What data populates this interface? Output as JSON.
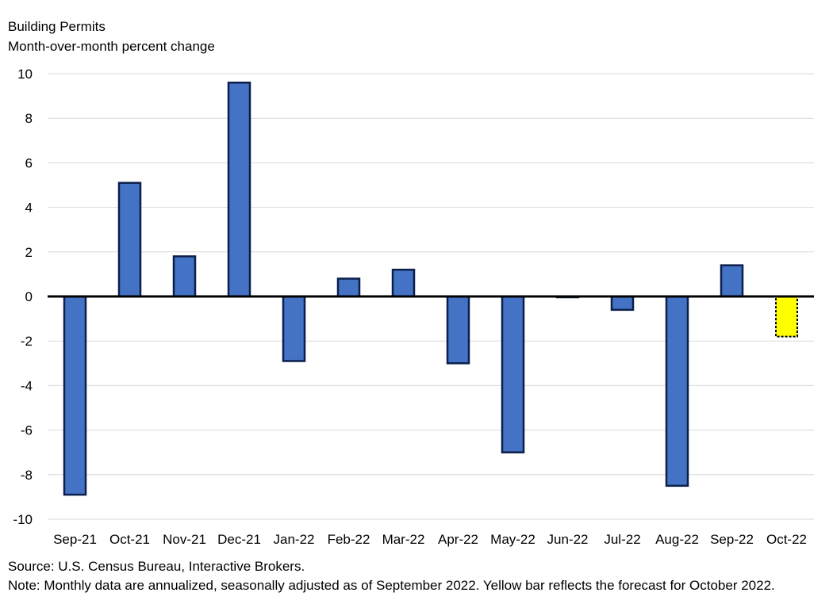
{
  "chart_data": {
    "type": "bar",
    "title": "Building Permits",
    "subtitle": "Month-over-month percent change",
    "categories": [
      "Sep-21",
      "Oct-21",
      "Nov-21",
      "Dec-21",
      "Jan-22",
      "Feb-22",
      "Mar-22",
      "Apr-22",
      "May-22",
      "Jun-22",
      "Jul-22",
      "Aug-22",
      "Sep-22",
      "Oct-22"
    ],
    "values": [
      -8.9,
      5.1,
      1.8,
      9.6,
      -2.9,
      0.8,
      1.2,
      -3.0,
      -7.0,
      0.0,
      -0.6,
      -8.5,
      1.4,
      -1.8
    ],
    "forecast_index": 13,
    "ylim": [
      -10,
      10
    ],
    "yticks": [
      10,
      8,
      6,
      4,
      2,
      0,
      -2,
      -4,
      -6,
      -8,
      -10
    ],
    "grid": true,
    "colors": {
      "bar": "#4472c4",
      "bar_border": "#0b1f4a",
      "forecast": "#ffff00",
      "grid": "#d9d9d9",
      "zero_line": "#000000"
    }
  },
  "source": "Source: U.S. Census Bureau, Interactive Brokers.",
  "note": "Note: Monthly data are annualized, seasonally adjusted as of September 2022. Yellow bar reflects the forecast for October 2022."
}
